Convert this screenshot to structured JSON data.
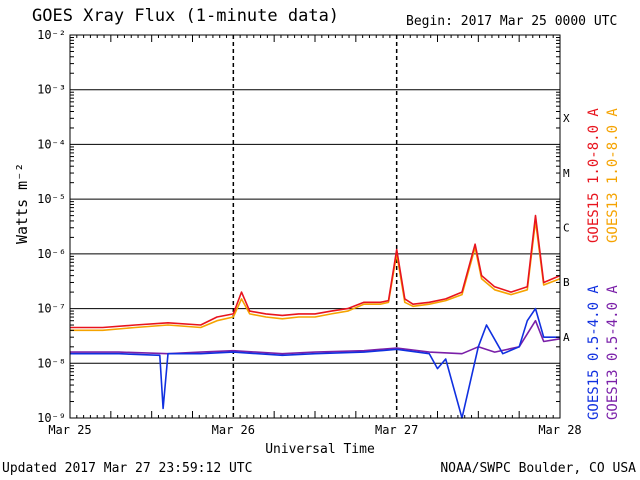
{
  "title": "GOES Xray Flux (1-minute data)",
  "begin_label": "Begin:  2017 Mar 25 0000 UTC",
  "updated": "Updated 2017 Mar 27 23:59:12 UTC",
  "credit": "NOAA/SWPC Boulder, CO USA",
  "legend_right": [
    {
      "label": "GOES15 1.0-8.0 A",
      "color": "#e8141e"
    },
    {
      "label": "GOES13 1.0-8.0 A",
      "color": "#f5a300"
    },
    {
      "label": "GOES15 0.5-4.0 A",
      "color": "#1030e0"
    },
    {
      "label": "GOES13 0.5-4.0 A",
      "color": "#7a1fa8"
    }
  ],
  "chart_data": {
    "type": "line",
    "title": "GOES Xray Flux (1-minute data)",
    "xlabel": "Universal Time",
    "ylabel": "Watts m⁻²",
    "y_scale": "log",
    "ylim": [
      1e-09,
      0.01
    ],
    "xlim_days": [
      0,
      3
    ],
    "x_tick_labels": [
      "Mar 25",
      "Mar 26",
      "Mar 27",
      "Mar 28"
    ],
    "y_tick_labels": [
      "10⁻⁹",
      "10⁻⁸",
      "10⁻⁷",
      "10⁻⁶",
      "10⁻⁵",
      "10⁻⁴",
      "10⁻³",
      "10⁻²"
    ],
    "flare_classes": [
      "A",
      "B",
      "C",
      "M",
      "X"
    ],
    "grid": true,
    "series": [
      {
        "name": "GOES15 1.0-8.0 A",
        "color": "#e8141e",
        "points": [
          [
            0,
            4.5e-08
          ],
          [
            0.2,
            4.5e-08
          ],
          [
            0.4,
            5e-08
          ],
          [
            0.6,
            5.5e-08
          ],
          [
            0.8,
            5e-08
          ],
          [
            0.9,
            7e-08
          ],
          [
            1.0,
            8e-08
          ],
          [
            1.05,
            2e-07
          ],
          [
            1.1,
            9e-08
          ],
          [
            1.2,
            8e-08
          ],
          [
            1.3,
            7.5e-08
          ],
          [
            1.4,
            8e-08
          ],
          [
            1.5,
            8e-08
          ],
          [
            1.6,
            9e-08
          ],
          [
            1.7,
            1e-07
          ],
          [
            1.8,
            1.3e-07
          ],
          [
            1.9,
            1.3e-07
          ],
          [
            1.95,
            1.4e-07
          ],
          [
            2.0,
            1.2e-06
          ],
          [
            2.05,
            1.5e-07
          ],
          [
            2.1,
            1.2e-07
          ],
          [
            2.2,
            1.3e-07
          ],
          [
            2.3,
            1.5e-07
          ],
          [
            2.4,
            2e-07
          ],
          [
            2.48,
            1.5e-06
          ],
          [
            2.52,
            4e-07
          ],
          [
            2.6,
            2.5e-07
          ],
          [
            2.7,
            2e-07
          ],
          [
            2.8,
            2.5e-07
          ],
          [
            2.85,
            5e-06
          ],
          [
            2.9,
            3e-07
          ],
          [
            3.0,
            4e-07
          ]
        ]
      },
      {
        "name": "GOES13 1.0-8.0 A",
        "color": "#f5a300",
        "points": [
          [
            0,
            4e-08
          ],
          [
            0.2,
            4e-08
          ],
          [
            0.4,
            4.5e-08
          ],
          [
            0.6,
            5e-08
          ],
          [
            0.8,
            4.5e-08
          ],
          [
            0.9,
            6e-08
          ],
          [
            1.0,
            7e-08
          ],
          [
            1.05,
            1.5e-07
          ],
          [
            1.1,
            8e-08
          ],
          [
            1.2,
            7e-08
          ],
          [
            1.3,
            6.5e-08
          ],
          [
            1.4,
            7e-08
          ],
          [
            1.5,
            7e-08
          ],
          [
            1.6,
            8e-08
          ],
          [
            1.7,
            9e-08
          ],
          [
            1.8,
            1.2e-07
          ],
          [
            1.9,
            1.2e-07
          ],
          [
            1.95,
            1.3e-07
          ],
          [
            2.0,
            1e-06
          ],
          [
            2.05,
            1.3e-07
          ],
          [
            2.1,
            1.1e-07
          ],
          [
            2.2,
            1.2e-07
          ],
          [
            2.3,
            1.4e-07
          ],
          [
            2.4,
            1.8e-07
          ],
          [
            2.48,
            1.3e-06
          ],
          [
            2.52,
            3.5e-07
          ],
          [
            2.6,
            2.2e-07
          ],
          [
            2.7,
            1.8e-07
          ],
          [
            2.8,
            2.2e-07
          ],
          [
            2.85,
            4e-06
          ],
          [
            2.9,
            2.7e-07
          ],
          [
            3.0,
            3.5e-07
          ]
        ]
      },
      {
        "name": "GOES15 0.5-4.0 A",
        "color": "#1030e0",
        "points": [
          [
            0,
            1.5e-08
          ],
          [
            0.3,
            1.5e-08
          ],
          [
            0.55,
            1.4e-08
          ],
          [
            0.57,
            1.5e-09
          ],
          [
            0.6,
            1.5e-08
          ],
          [
            0.8,
            1.5e-08
          ],
          [
            1.0,
            1.6e-08
          ],
          [
            1.3,
            1.4e-08
          ],
          [
            1.5,
            1.5e-08
          ],
          [
            1.8,
            1.6e-08
          ],
          [
            2.0,
            1.8e-08
          ],
          [
            2.2,
            1.5e-08
          ],
          [
            2.25,
            8e-09
          ],
          [
            2.3,
            1.2e-08
          ],
          [
            2.4,
            1e-09
          ],
          [
            2.5,
            2e-08
          ],
          [
            2.55,
            5e-08
          ],
          [
            2.65,
            1.5e-08
          ],
          [
            2.75,
            2e-08
          ],
          [
            2.8,
            6e-08
          ],
          [
            2.85,
            1e-07
          ],
          [
            2.9,
            3e-08
          ],
          [
            3.0,
            3e-08
          ]
        ]
      },
      {
        "name": "GOES13 0.5-4.0 A",
        "color": "#7a1fa8",
        "points": [
          [
            0,
            1.6e-08
          ],
          [
            0.3,
            1.6e-08
          ],
          [
            0.6,
            1.5e-08
          ],
          [
            0.8,
            1.6e-08
          ],
          [
            1.0,
            1.7e-08
          ],
          [
            1.3,
            1.5e-08
          ],
          [
            1.5,
            1.6e-08
          ],
          [
            1.8,
            1.7e-08
          ],
          [
            2.0,
            1.9e-08
          ],
          [
            2.2,
            1.6e-08
          ],
          [
            2.4,
            1.5e-08
          ],
          [
            2.5,
            2e-08
          ],
          [
            2.6,
            1.6e-08
          ],
          [
            2.75,
            2e-08
          ],
          [
            2.85,
            6e-08
          ],
          [
            2.9,
            2.5e-08
          ],
          [
            3.0,
            2.8e-08
          ]
        ]
      }
    ]
  }
}
